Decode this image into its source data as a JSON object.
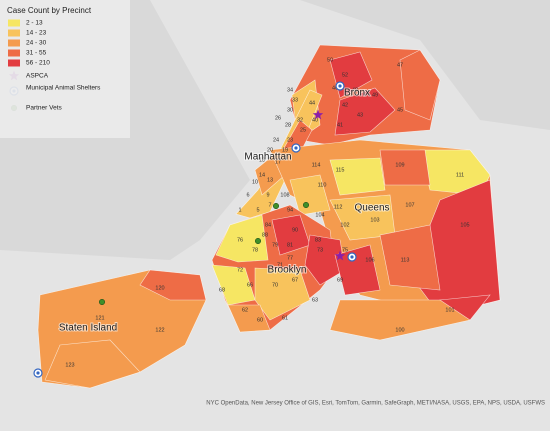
{
  "legend": {
    "title": "Case Count by Precinct",
    "classes": [
      {
        "label": "2 - 13",
        "color": "#f6e663"
      },
      {
        "label": "14 - 23",
        "color": "#f8c35c"
      },
      {
        "label": "24 - 30",
        "color": "#f49b4e"
      },
      {
        "label": "31 - 55",
        "color": "#ee6c46"
      },
      {
        "label": "56 - 210",
        "color": "#e23c40"
      }
    ],
    "symbols": [
      "ASPCA",
      "Municipal Animal Shelters",
      "Partner Vets"
    ]
  },
  "boroughs": [
    "Bronx",
    "Manhattan",
    "Queens",
    "Brooklyn",
    "Staten Island"
  ],
  "precincts": [
    50,
    52,
    47,
    46,
    48,
    49,
    44,
    42,
    43,
    40,
    45,
    41,
    34,
    33,
    30,
    32,
    28,
    26,
    25,
    24,
    23,
    20,
    19,
    18,
    17,
    14,
    13,
    10,
    6,
    9,
    1,
    5,
    7,
    114,
    115,
    109,
    111,
    110,
    108,
    104,
    112,
    107,
    94,
    90,
    84,
    83,
    103,
    102,
    105,
    76,
    88,
    79,
    81,
    73,
    75,
    113,
    106,
    78,
    77,
    72,
    71,
    69,
    67,
    66,
    68,
    70,
    60,
    61,
    63,
    62,
    100,
    101,
    120,
    122,
    123,
    121
  ],
  "attribution": "NYC OpenData, New Jersey Office of GIS, Esri, TomTom, Garmin, SafeGraph, METI/NASA, USGS, EPA, NPS, USDA, USFWS"
}
